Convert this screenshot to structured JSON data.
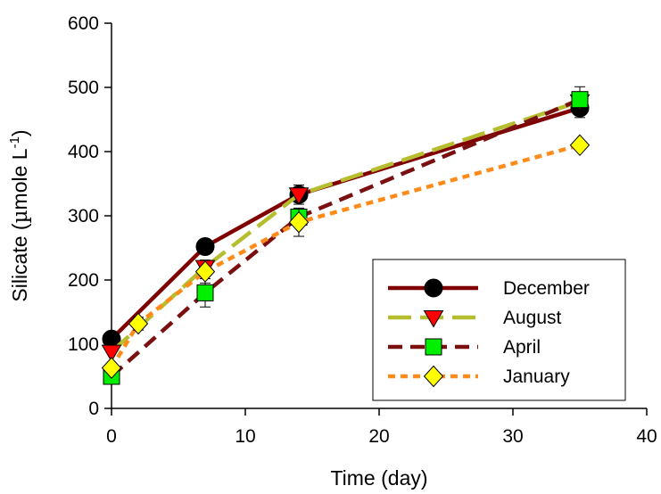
{
  "chart_data": {
    "type": "line",
    "xlabel": "Time (day)",
    "ylabel": {
      "prefix": "Silicate (",
      "mu": "µ",
      "unit_main": "mole L",
      "superscript": "-1",
      "suffix": ")"
    },
    "xlim": [
      0,
      40
    ],
    "ylim": [
      0,
      600
    ],
    "xticks": [
      "0",
      "10",
      "20",
      "30",
      "40"
    ],
    "yticks": [
      "0",
      "100",
      "200",
      "300",
      "400",
      "500",
      "600"
    ],
    "grid": false,
    "legend_position": "bottom-right",
    "series": [
      {
        "name": "December",
        "color": "#800000",
        "marker": "circle",
        "marker_color": "#000000",
        "line_style": "solid",
        "x": [
          0,
          7,
          14,
          35
        ],
        "y": [
          108,
          252,
          333,
          468
        ],
        "err": [
          0,
          0,
          15,
          15
        ]
      },
      {
        "name": "August",
        "color": "#b5be2e",
        "marker": "triangle-down",
        "marker_color": "#ff0000",
        "line_style": "long-dash",
        "x": [
          0,
          7,
          14,
          35
        ],
        "y": [
          88,
          220,
          333,
          478
        ],
        "err": [
          0,
          0,
          0,
          0
        ]
      },
      {
        "name": "April",
        "color": "#7a1010",
        "marker": "square",
        "marker_color": "#00ee00",
        "line_style": "dash",
        "x": [
          0,
          7,
          14,
          35
        ],
        "y": [
          50,
          180,
          298,
          481
        ],
        "err": [
          0,
          22,
          12,
          20
        ]
      },
      {
        "name": "January",
        "color": "#ff8c1a",
        "marker": "diamond",
        "marker_color": "#ffff00",
        "line_style": "dot",
        "x": [
          0,
          2,
          7,
          14,
          35
        ],
        "y": [
          63,
          132,
          213,
          290,
          410
        ],
        "err": [
          0,
          10,
          18,
          22,
          0
        ]
      }
    ]
  }
}
